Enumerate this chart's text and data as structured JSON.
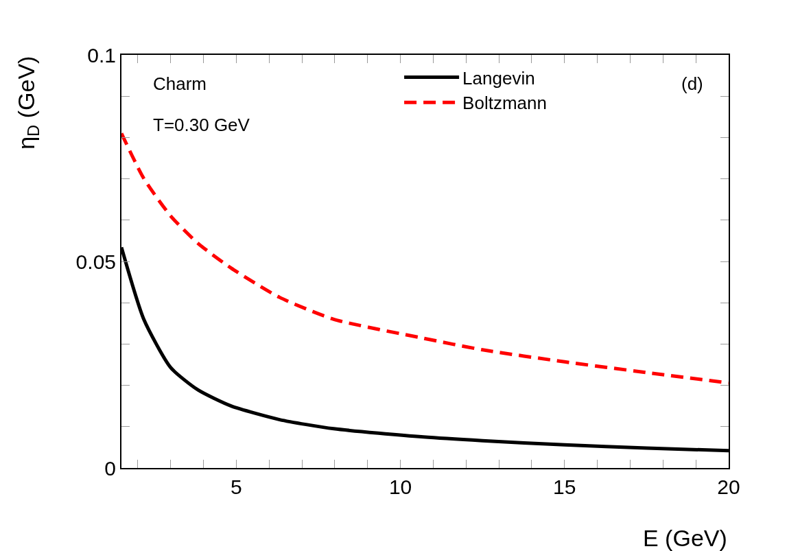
{
  "chart_data": {
    "type": "line",
    "xlabel": "E (GeV)",
    "ylabel": "η$_{D}$ (GeV)",
    "annotations": [
      "Charm",
      "T=0.30 GeV",
      "(d)"
    ],
    "x": [
      1.5,
      2.18,
      3.0,
      3.83,
      4.84,
      6.32,
      7.97,
      10.7,
      12.5,
      15,
      17.5,
      20
    ],
    "series": [
      {
        "name": "Langevin",
        "color": "#000000",
        "line_style": "solid",
        "values": [
          0.0534,
          0.036,
          0.0243,
          0.0189,
          0.015,
          0.0117,
          0.0095,
          0.0075,
          0.0066,
          0.0056,
          0.0048,
          0.0042
        ]
      },
      {
        "name": "Boltzmann",
        "color": "#ff0000",
        "line_style": "dashed",
        "values": [
          0.081,
          0.0701,
          0.061,
          0.0544,
          0.0484,
          0.0413,
          0.036,
          0.0314,
          0.0286,
          0.0257,
          0.0231,
          0.0206
        ]
      }
    ],
    "xlim": [
      1.5,
      20
    ],
    "xticks": [
      {
        "value": 2,
        "label": null
      },
      {
        "value": 3,
        "label": null
      },
      {
        "value": 4,
        "label": null
      },
      5,
      {
        "value": 6,
        "label": null
      },
      {
        "value": 7,
        "label": null
      },
      {
        "value": 8,
        "label": null
      },
      {
        "value": 9,
        "label": null
      },
      10,
      {
        "value": 11,
        "label": null
      },
      {
        "value": 12,
        "label": null
      },
      {
        "value": 13,
        "label": null
      },
      {
        "value": 14,
        "label": null
      },
      15,
      {
        "value": 16,
        "label": null
      },
      {
        "value": 17,
        "label": null
      },
      {
        "value": 18,
        "label": null
      },
      {
        "value": 19,
        "label": null
      },
      20
    ],
    "ylim": [
      0,
      0.1
    ],
    "yticks": [
      0,
      {
        "value": 0.01,
        "label": null
      },
      {
        "value": 0.02,
        "label": null
      },
      {
        "value": 0.03,
        "label": null
      },
      {
        "value": 0.04,
        "label": null
      },
      0.05,
      {
        "value": 0.06,
        "label": null
      },
      {
        "value": 0.07,
        "label": null
      },
      {
        "value": 0.08,
        "label": null
      },
      {
        "value": 0.09,
        "label": null
      },
      0.1
    ],
    "grid": false,
    "legend": "top right",
    "marker": "none"
  }
}
